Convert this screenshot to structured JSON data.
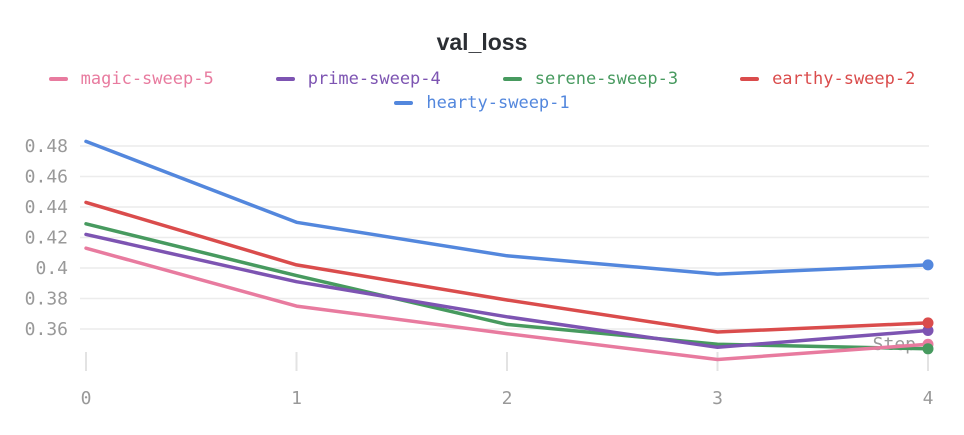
{
  "chart_data": {
    "type": "line",
    "title": "val_loss",
    "xlabel": "Step",
    "ylabel": "",
    "x": [
      0,
      1,
      2,
      3,
      4
    ],
    "x_tick_labels": [
      "0",
      "1",
      "2",
      "3",
      "4"
    ],
    "y_tick_labels": [
      "0.48",
      "0.46",
      "0.44",
      "0.42",
      "0.4",
      "0.38",
      "0.36"
    ],
    "xlim": [
      0,
      4
    ],
    "ylim": [
      0.332,
      0.49
    ],
    "grid": "horizontal-only",
    "legend_position": "top",
    "end_point_markers": true,
    "series": [
      {
        "name": "magic-sweep-5",
        "color": "#E87B9F",
        "values": [
          0.413,
          0.375,
          0.357,
          0.34,
          0.35
        ]
      },
      {
        "name": "prime-sweep-4",
        "color": "#7D54B2",
        "values": [
          0.422,
          0.391,
          0.368,
          0.348,
          0.359
        ]
      },
      {
        "name": "serene-sweep-3",
        "color": "#479A5F",
        "values": [
          0.429,
          0.395,
          0.363,
          0.35,
          0.347
        ]
      },
      {
        "name": "earthy-sweep-2",
        "color": "#DA4C4C",
        "values": [
          0.443,
          0.402,
          0.379,
          0.358,
          0.364
        ]
      },
      {
        "name": "hearty-sweep-1",
        "color": "#5387DD",
        "values": [
          0.483,
          0.43,
          0.408,
          0.396,
          0.402
        ]
      }
    ]
  },
  "colors": {
    "title_text": "#2b2e33",
    "axis_text": "#999999",
    "gridline": "#ececec",
    "tick_mark": "#e3e3e3",
    "background": "#ffffff"
  }
}
